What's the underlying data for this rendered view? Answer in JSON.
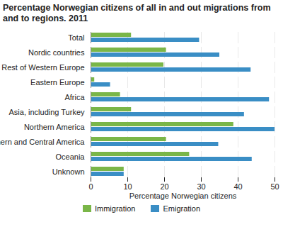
{
  "chart_data": {
    "type": "bar",
    "orientation": "horizontal",
    "title": "Percentage Norwegian citizens of all in and out migrations from and to regions. 2011",
    "xlabel": "Percentage Norwegian citizens",
    "categories": [
      "Total",
      "Nordic countries",
      "Rest of Western Europe",
      "Eastern Europe",
      "Africa",
      "Asia, including Turkey",
      "Northern America",
      "Southern and Central America",
      "Oceania",
      "Unknown"
    ],
    "series": [
      {
        "name": "Immigration",
        "color": "#7ab648",
        "values": [
          11,
          20.5,
          19.8,
          1,
          8,
          11,
          38.8,
          20.5,
          26.8,
          9
        ]
      },
      {
        "name": "Emigration",
        "color": "#3a8ec5",
        "values": [
          29.5,
          35,
          43.5,
          5.3,
          48.5,
          41.7,
          50,
          34.7,
          43.8,
          9
        ]
      }
    ],
    "xlim": [
      0,
      50
    ],
    "xticks": [
      0,
      10,
      20,
      30,
      40,
      50
    ],
    "grid": true,
    "legend": "bottom"
  }
}
